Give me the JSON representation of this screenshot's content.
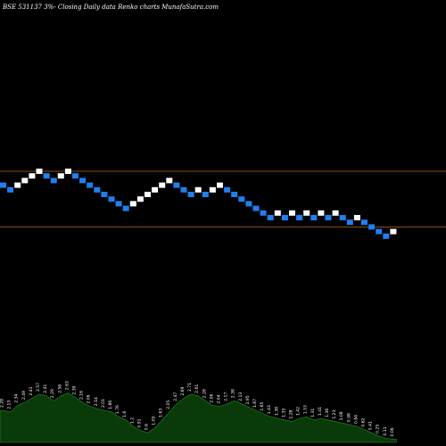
{
  "chart_data": {
    "type": "renko",
    "title": "BSE 531137 3%-  Closing Daily data  Renko  charts MunafaSutra.com",
    "colors": {
      "background": "#000000",
      "up_brick": "#ffffff",
      "down_brick": "#1f7fef",
      "reference_line": "#b5651d",
      "volume_area": "#0a3a0a",
      "volume_outline": "#1f8f1f"
    },
    "reference_lines": [
      26.8,
      26.2
    ],
    "bricks": [
      {
        "dir": "down",
        "value": 26.65
      },
      {
        "dir": "down",
        "value": 26.6
      },
      {
        "dir": "up",
        "value": 26.65
      },
      {
        "dir": "up",
        "value": 26.7
      },
      {
        "dir": "up",
        "value": 26.75
      },
      {
        "dir": "up",
        "value": 26.8
      },
      {
        "dir": "down",
        "value": 26.75
      },
      {
        "dir": "down",
        "value": 26.7
      },
      {
        "dir": "up",
        "value": 26.75
      },
      {
        "dir": "up",
        "value": 26.8
      },
      {
        "dir": "down",
        "value": 26.75
      },
      {
        "dir": "down",
        "value": 26.7
      },
      {
        "dir": "down",
        "value": 26.65
      },
      {
        "dir": "down",
        "value": 26.6
      },
      {
        "dir": "down",
        "value": 26.55
      },
      {
        "dir": "down",
        "value": 26.5
      },
      {
        "dir": "down",
        "value": 26.45
      },
      {
        "dir": "down",
        "value": 26.4
      },
      {
        "dir": "up",
        "value": 26.45
      },
      {
        "dir": "up",
        "value": 26.5
      },
      {
        "dir": "up",
        "value": 26.55
      },
      {
        "dir": "up",
        "value": 26.6
      },
      {
        "dir": "up",
        "value": 26.65
      },
      {
        "dir": "up",
        "value": 26.7
      },
      {
        "dir": "down",
        "value": 26.65
      },
      {
        "dir": "down",
        "value": 26.6
      },
      {
        "dir": "down",
        "value": 26.55
      },
      {
        "dir": "up",
        "value": 26.6
      },
      {
        "dir": "down",
        "value": 26.55
      },
      {
        "dir": "up",
        "value": 26.6
      },
      {
        "dir": "up",
        "value": 26.65
      },
      {
        "dir": "down",
        "value": 26.6
      },
      {
        "dir": "down",
        "value": 26.55
      },
      {
        "dir": "down",
        "value": 26.5
      },
      {
        "dir": "down",
        "value": 26.45
      },
      {
        "dir": "down",
        "value": 26.4
      },
      {
        "dir": "down",
        "value": 26.35
      },
      {
        "dir": "down",
        "value": 26.3
      },
      {
        "dir": "up",
        "value": 26.35
      },
      {
        "dir": "down",
        "value": 26.3
      },
      {
        "dir": "up",
        "value": 26.35
      },
      {
        "dir": "down",
        "value": 26.3
      },
      {
        "dir": "up",
        "value": 26.35
      },
      {
        "dir": "down",
        "value": 26.3
      },
      {
        "dir": "up",
        "value": 26.35
      },
      {
        "dir": "down",
        "value": 26.3
      },
      {
        "dir": "up",
        "value": 26.35
      },
      {
        "dir": "down",
        "value": 26.3
      },
      {
        "dir": "down",
        "value": 26.25
      },
      {
        "dir": "up",
        "value": 26.3
      },
      {
        "dir": "down",
        "value": 26.25
      },
      {
        "dir": "down",
        "value": 26.2
      },
      {
        "dir": "down",
        "value": 26.15
      },
      {
        "dir": "down",
        "value": 26.1
      },
      {
        "dir": "up",
        "value": 26.15
      }
    ],
    "volume": {
      "values": [
        40,
        38,
        46,
        50,
        55,
        60,
        58,
        52,
        58,
        62,
        56,
        50,
        45,
        42,
        40,
        38,
        32,
        28,
        20,
        15,
        12,
        18,
        28,
        38,
        48,
        55,
        60,
        58,
        52,
        46,
        45,
        48,
        52,
        48,
        44,
        40,
        36,
        32,
        30,
        28,
        26,
        30,
        32,
        28,
        30,
        28,
        26,
        24,
        22,
        20,
        16,
        12,
        8,
        5,
        4
      ],
      "labels": [
        "2.28",
        "2.13",
        "2.34",
        "2.49",
        "2.41",
        "2.57",
        "2.41",
        "2.29",
        "2.56",
        "2.63",
        "2.39",
        "2.16",
        "2.06",
        "2.14",
        "2.01",
        "1.86",
        "1.76",
        "1.6",
        "1.2",
        "0.91",
        "0.6",
        "1.09",
        "1.63",
        "2.05",
        "2.47",
        "2.69",
        "2.71",
        "2.61",
        "2.28",
        "2.06",
        "2.04",
        "2.17",
        "2.38",
        "2.13",
        "1.95",
        "1.87",
        "1.65",
        "1.43",
        "1.38",
        "1.35",
        "1.28",
        "1.42",
        "1.53",
        "1.31",
        "1.41",
        "1.36",
        "1.23",
        "1.08",
        "0.98",
        "0.84",
        "0.62",
        "0.41",
        "0.25",
        "0.11",
        "0.06"
      ]
    }
  }
}
